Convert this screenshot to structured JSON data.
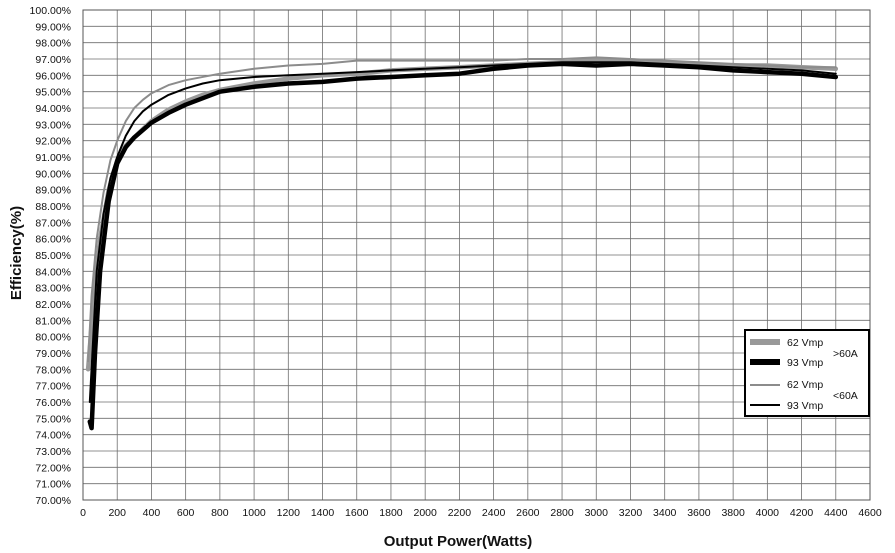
{
  "chart_data": {
    "type": "line",
    "xlabel": "Output Power(Watts)",
    "ylabel": "Efficiency(%)",
    "xlim": [
      0,
      4600
    ],
    "ylim": [
      70,
      100
    ],
    "x_ticks": [
      0,
      200,
      400,
      600,
      800,
      1000,
      1200,
      1400,
      1600,
      1800,
      2000,
      2200,
      2400,
      2600,
      2800,
      3000,
      3200,
      3400,
      3600,
      3800,
      4000,
      4200,
      4400,
      4600
    ],
    "x_tick_labels": [
      "0",
      "200",
      "400",
      "600",
      "800",
      "1000",
      "1200",
      "1400",
      "1600",
      "1800",
      "2000",
      "2200",
      "2400",
      "2600",
      "2800",
      "3000",
      "3200",
      "3400",
      "3600",
      "3800",
      "4000",
      "4200",
      "4400",
      "4600"
    ],
    "y_ticks": [
      70,
      71,
      72,
      73,
      74,
      75,
      76,
      77,
      78,
      79,
      80,
      81,
      82,
      83,
      84,
      85,
      86,
      87,
      88,
      89,
      90,
      91,
      92,
      93,
      94,
      95,
      96,
      97,
      98,
      99,
      100
    ],
    "y_tick_labels": [
      "70.00%",
      "71.00%",
      "72.00%",
      "73.00%",
      "74.00%",
      "75.00%",
      "76.00%",
      "77.00%",
      "78.00%",
      "79.00%",
      "80.00%",
      "81.00%",
      "82.00%",
      "83.00%",
      "84.00%",
      "85.00%",
      "86.00%",
      "87.00%",
      "88.00%",
      "89.00%",
      "90.00%",
      "91.00%",
      "92.00%",
      "93.00%",
      "94.00%",
      "95.00%",
      "96.00%",
      "97.00%",
      "98.00%",
      "99.00%",
      "100.00%"
    ],
    "grid": true,
    "legend_position": "bottom-right",
    "legend_group_labels": [
      ">60A",
      "<60A"
    ],
    "series": [
      {
        "name": "62 Vmp",
        "group": ">60A",
        "color": "#999999",
        "style": "thick",
        "x": [
          30,
          60,
          100,
          150,
          200,
          250,
          300,
          400,
          500,
          600,
          700,
          800,
          1000,
          1200,
          1400,
          1600,
          1800,
          2000,
          2200,
          2400,
          2600,
          2800,
          3000,
          3200,
          3400,
          3600,
          3800,
          4000,
          4200,
          4400
        ],
        "y": [
          78.0,
          82.0,
          86.0,
          89.0,
          90.8,
          91.7,
          92.2,
          93.2,
          93.9,
          94.4,
          94.8,
          95.1,
          95.5,
          95.8,
          96.0,
          96.1,
          96.3,
          96.4,
          96.5,
          96.6,
          96.7,
          96.8,
          96.9,
          96.9,
          96.8,
          96.7,
          96.6,
          96.6,
          96.5,
          96.4
        ]
      },
      {
        "name": "93 Vmp",
        "group": ">60A",
        "color": "#000000",
        "style": "thick",
        "x": [
          40,
          50,
          70,
          100,
          150,
          200,
          250,
          300,
          400,
          500,
          600,
          700,
          800,
          1000,
          1200,
          1400,
          1600,
          1800,
          2000,
          2200,
          2400,
          2600,
          2800,
          3000,
          3200,
          3400,
          3600,
          3800,
          4000,
          4200,
          4400
        ],
        "y": [
          74.8,
          74.4,
          79.0,
          84.0,
          88.3,
          90.6,
          91.6,
          92.2,
          93.1,
          93.7,
          94.2,
          94.6,
          95.0,
          95.3,
          95.5,
          95.6,
          95.8,
          95.9,
          96.0,
          96.1,
          96.4,
          96.6,
          96.7,
          96.6,
          96.7,
          96.6,
          96.5,
          96.3,
          96.2,
          96.1,
          95.9
        ]
      },
      {
        "name": "62 Vmp",
        "group": "<60A",
        "color": "#8c8c8c",
        "style": "thin",
        "x": [
          30,
          50,
          80,
          120,
          160,
          200,
          250,
          300,
          350,
          400,
          500,
          600,
          800,
          1000,
          1200,
          1400,
          1600,
          1800,
          2000,
          2200,
          2400,
          2600,
          2800,
          3000,
          3200,
          3400,
          3600,
          3800,
          4000,
          4200,
          4400
        ],
        "y": [
          78.5,
          82.5,
          86.0,
          88.8,
          90.8,
          92.0,
          93.2,
          94.0,
          94.5,
          94.9,
          95.4,
          95.7,
          96.1,
          96.4,
          96.6,
          96.7,
          96.9,
          96.9,
          96.9,
          96.9,
          96.9,
          97.0,
          97.0,
          97.1,
          97.0,
          96.9,
          96.8,
          96.7,
          96.6,
          96.5,
          96.5
        ]
      },
      {
        "name": "93 Vmp",
        "group": "<60A",
        "color": "#000000",
        "style": "thin",
        "x": [
          40,
          60,
          80,
          120,
          160,
          200,
          250,
          300,
          350,
          400,
          500,
          600,
          700,
          800,
          1000,
          1200,
          1400,
          1600,
          1800,
          2000,
          2200,
          2400,
          2600,
          2800,
          3000,
          3200,
          3400,
          3600,
          3800,
          4000,
          4200,
          4400
        ],
        "y": [
          76.0,
          80.0,
          84.0,
          87.5,
          89.7,
          91.0,
          92.3,
          93.2,
          93.8,
          94.2,
          94.8,
          95.2,
          95.5,
          95.7,
          95.9,
          96.0,
          96.1,
          96.2,
          96.3,
          96.4,
          96.5,
          96.6,
          96.7,
          96.8,
          96.8,
          96.8,
          96.7,
          96.6,
          96.5,
          96.4,
          96.3,
          96.1
        ]
      }
    ]
  }
}
